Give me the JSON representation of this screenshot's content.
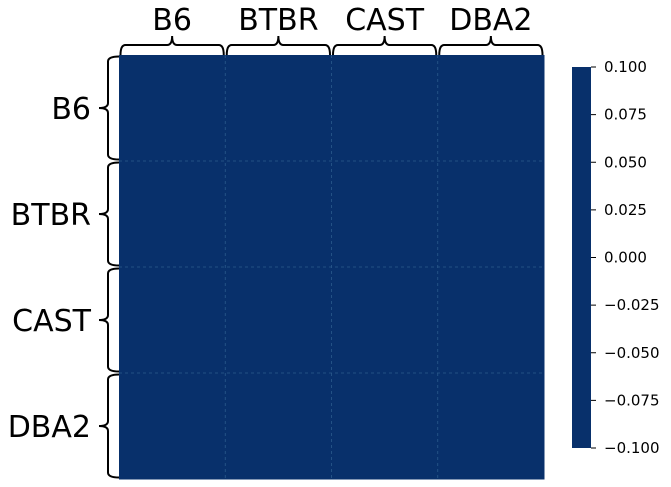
{
  "chart_data": {
    "type": "heatmap",
    "title": "",
    "xlabel": "",
    "ylabel": "",
    "x_categories": [
      "B6",
      "BTBR",
      "CAST",
      "DBA2"
    ],
    "y_categories": [
      "B6",
      "BTBR",
      "CAST",
      "DBA2"
    ],
    "values": [
      [
        0,
        0,
        0,
        0
      ],
      [
        0,
        0,
        0,
        0
      ],
      [
        0,
        0,
        0,
        0
      ],
      [
        0,
        0,
        0,
        0
      ]
    ],
    "cell_color": "#08306b",
    "grid_color": "#2b5a8c",
    "grid": true,
    "colorbar": {
      "range": [
        -0.1,
        0.1
      ],
      "ticks": [
        "0.100",
        "0.075",
        "0.050",
        "0.025",
        "0.000",
        "−0.025",
        "−0.050",
        "−0.075",
        "−0.100"
      ],
      "color": "#08306b",
      "placement": "right"
    },
    "brackets": {
      "color": "#000000",
      "style": "curly-brace"
    }
  }
}
